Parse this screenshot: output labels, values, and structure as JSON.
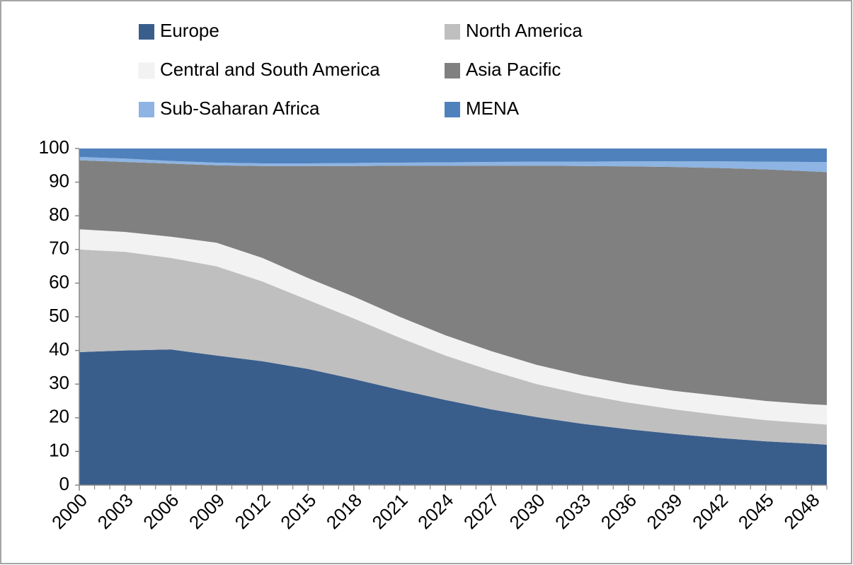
{
  "chart_data": {
    "type": "stacked_area",
    "x": [
      2000,
      2003,
      2006,
      2009,
      2012,
      2015,
      2018,
      2021,
      2024,
      2027,
      2030,
      2033,
      2036,
      2039,
      2042,
      2045,
      2048,
      2049
    ],
    "xlim": [
      2000,
      2049
    ],
    "xticks": [
      2000,
      2003,
      2006,
      2009,
      2012,
      2015,
      2018,
      2021,
      2024,
      2027,
      2030,
      2033,
      2036,
      2039,
      2042,
      2045,
      2048
    ],
    "ylim": [
      0,
      100
    ],
    "yticks": [
      0,
      10,
      20,
      30,
      40,
      50,
      60,
      70,
      80,
      90,
      100
    ],
    "legend": "top",
    "series": [
      {
        "name": "Europe",
        "color": "#3a5e8c",
        "values": [
          39.5,
          40,
          40.3,
          38.5,
          36.8,
          34.5,
          31.5,
          28.3,
          25.3,
          22.5,
          20.2,
          18.2,
          16.6,
          15.2,
          14,
          13,
          12.3,
          12
        ]
      },
      {
        "name": "North America",
        "color": "#bfbfbf",
        "values": [
          30.5,
          29.3,
          27.2,
          26.5,
          23.7,
          20.5,
          18,
          15.5,
          13.2,
          11.5,
          9.8,
          8.8,
          7.9,
          7.3,
          6.8,
          6.3,
          6,
          6
        ]
      },
      {
        "name": "Central and South America",
        "color": "#f2f2f2",
        "values": [
          6,
          5.9,
          6.3,
          7,
          7,
          6.5,
          6.5,
          6.2,
          6,
          5.8,
          5.7,
          5.5,
          5.5,
          5.5,
          5.7,
          5.7,
          5.7,
          5.8
        ]
      },
      {
        "name": "Asia Pacific",
        "color": "#808080",
        "values": [
          20.5,
          20.8,
          21.7,
          23,
          27.3,
          33.3,
          38.8,
          44.9,
          50.4,
          55.1,
          59.2,
          62.3,
          64.7,
          66.5,
          67.7,
          68.8,
          69.2,
          69.2
        ]
      },
      {
        "name": "Sub-Saharan Africa",
        "color": "#8db4e2",
        "values": [
          1,
          1,
          0.8,
          0.8,
          0.8,
          0.8,
          0.9,
          0.9,
          1,
          1.1,
          1.2,
          1.3,
          1.5,
          1.7,
          2,
          2.3,
          2.8,
          3
        ]
      },
      {
        "name": "MENA",
        "color": "#4f81bd",
        "values": [
          2.5,
          3,
          3.7,
          4.2,
          4.4,
          4.4,
          4.3,
          4.2,
          4.1,
          4,
          3.9,
          3.9,
          3.8,
          3.8,
          3.8,
          3.9,
          4,
          4
        ]
      }
    ]
  }
}
